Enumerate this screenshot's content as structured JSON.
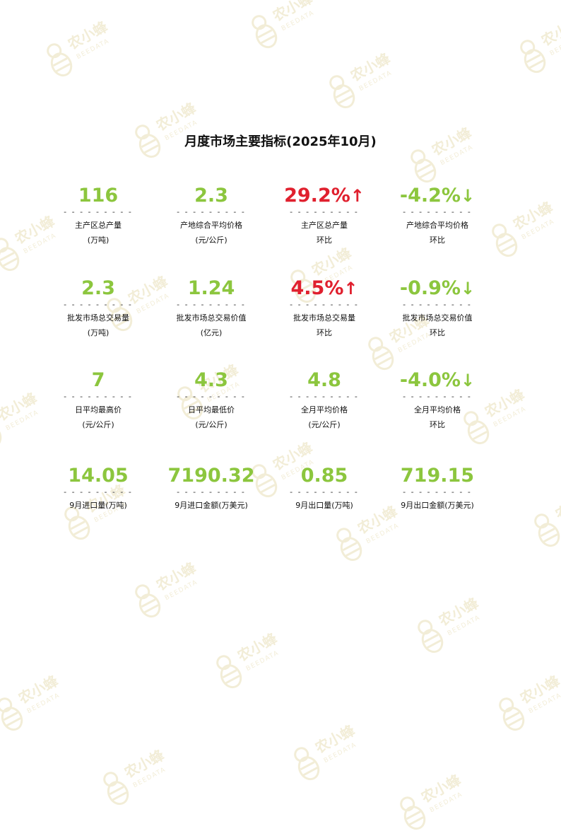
{
  "page": {
    "title": "月度市场主要指标(2025年10月)"
  },
  "watermark": {
    "text": "农小蜂",
    "subtext": "BEEDATA",
    "color": "#e9dfb8"
  },
  "colors": {
    "positive_green": "#8cc63e",
    "increase_red": "#e0202e"
  },
  "dash_text": "- - - - - - - - -",
  "rows": [
    {
      "items": [
        {
          "value": "116",
          "arrow": "",
          "line1": "主产区总产量",
          "line2": "(万吨)",
          "trend": "normal"
        },
        {
          "value": "2.3",
          "arrow": "",
          "line1": "产地综合平均价格",
          "line2": "(元/公斤)",
          "trend": "normal"
        },
        {
          "value": "29.2%",
          "arrow": "↑",
          "line1": "主产区总产量",
          "line2": "环比",
          "trend": "up"
        },
        {
          "value": "-4.2%",
          "arrow": "↓",
          "line1": "产地综合平均价格",
          "line2": "环比",
          "trend": "down"
        }
      ]
    },
    {
      "items": [
        {
          "value": "2.3",
          "arrow": "",
          "line1": "批发市场总交易量",
          "line2": "(万吨)",
          "trend": "normal"
        },
        {
          "value": "1.24",
          "arrow": "",
          "line1": "批发市场总交易价值",
          "line2": "(亿元)",
          "trend": "normal"
        },
        {
          "value": "4.5%",
          "arrow": "↑",
          "line1": "批发市场总交易量",
          "line2": "环比",
          "trend": "up"
        },
        {
          "value": "-0.9%",
          "arrow": "↓",
          "line1": "批发市场总交易价值",
          "line2": "环比",
          "trend": "down"
        }
      ]
    },
    {
      "items": [
        {
          "value": "7",
          "arrow": "",
          "line1": "日平均最高价",
          "line2": "(元/公斤)",
          "trend": "normal"
        },
        {
          "value": "4.3",
          "arrow": "",
          "line1": "日平均最低价",
          "line2": "(元/公斤)",
          "trend": "normal"
        },
        {
          "value": "4.8",
          "arrow": "",
          "line1": "全月平均价格",
          "line2": "(元/公斤)",
          "trend": "normal"
        },
        {
          "value": "-4.0%",
          "arrow": "↓",
          "line1": "全月平均价格",
          "line2": "环比",
          "trend": "down"
        }
      ]
    },
    {
      "items": [
        {
          "value": "14.05",
          "arrow": "",
          "line1": "9月进口量(万吨)",
          "line2": "",
          "trend": "normal"
        },
        {
          "value": "7190.32",
          "arrow": "",
          "line1": "9月进口金额(万美元)",
          "line2": "",
          "trend": "normal"
        },
        {
          "value": "0.85",
          "arrow": "",
          "line1": "9月出口量(万吨)",
          "line2": "",
          "trend": "normal"
        },
        {
          "value": "719.15",
          "arrow": "",
          "line1": "9月出口金额(万美元)",
          "line2": "",
          "trend": "normal"
        }
      ]
    }
  ]
}
